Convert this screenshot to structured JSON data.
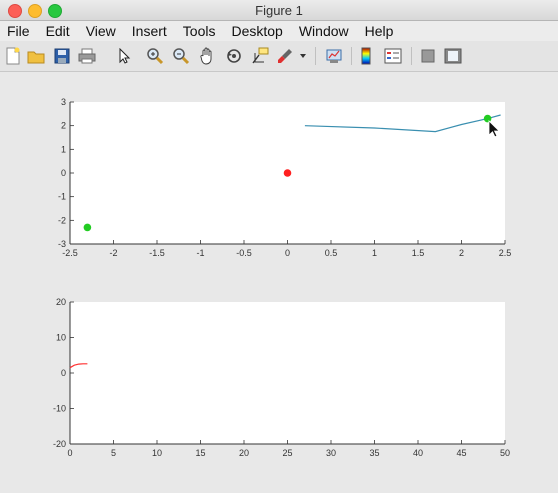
{
  "window": {
    "title": "Figure 1"
  },
  "menu": [
    "File",
    "Edit",
    "View",
    "Insert",
    "Tools",
    "Desktop",
    "Window",
    "Help"
  ],
  "toolbar_icons": [
    "new-figure-icon",
    "open-file-icon",
    "save-icon",
    "print-icon",
    "pointer-arrow-icon",
    "zoom-in-icon",
    "zoom-out-icon",
    "pan-hand-icon",
    "rotate-3d-icon",
    "data-cursor-icon",
    "brush-icon",
    "brush-dropdown-icon",
    "link-plot-icon",
    "colorbar-icon",
    "legend-icon",
    "hide-plot-tools-icon",
    "show-plot-tools-icon"
  ],
  "chart_data": [
    {
      "type": "line",
      "xlim": [
        -2.5,
        2.5
      ],
      "ylim": [
        -3,
        3
      ],
      "xticks": [
        "-2.5",
        "-2",
        "-1.5",
        "-1",
        "-0.5",
        "0",
        "0.5",
        "1",
        "1.5",
        "2",
        "2.5"
      ],
      "yticks": [
        "3",
        "2",
        "1",
        "0",
        "-1",
        "-2",
        "-3"
      ],
      "series": [
        {
          "kind": "line",
          "color": "#3a8fb0",
          "x": [
            0.2,
            1.0,
            1.7,
            2.0,
            2.3,
            2.45
          ],
          "y": [
            2.0,
            1.9,
            1.75,
            2.05,
            2.3,
            2.45
          ]
        },
        {
          "kind": "point",
          "color": "#ff2020",
          "x": [
            0
          ],
          "y": [
            0
          ]
        },
        {
          "kind": "point",
          "color": "#22cc22",
          "x": [
            -2.3
          ],
          "y": [
            -2.3
          ]
        },
        {
          "kind": "point",
          "color": "#22cc22",
          "x": [
            2.3
          ],
          "y": [
            2.3
          ]
        }
      ]
    },
    {
      "type": "line",
      "xlim": [
        0,
        50
      ],
      "ylim": [
        -20,
        20
      ],
      "xticks": [
        "0",
        "5",
        "10",
        "15",
        "20",
        "25",
        "30",
        "35",
        "40",
        "45",
        "50"
      ],
      "yticks": [
        "20",
        "10",
        "0",
        "-10",
        "-20"
      ],
      "series": [
        {
          "kind": "line",
          "color": "#ff3030",
          "x": [
            0,
            0.5,
            1,
            1.5,
            2
          ],
          "y": [
            1.5,
            2.2,
            2.5,
            2.6,
            2.6
          ]
        }
      ]
    }
  ]
}
